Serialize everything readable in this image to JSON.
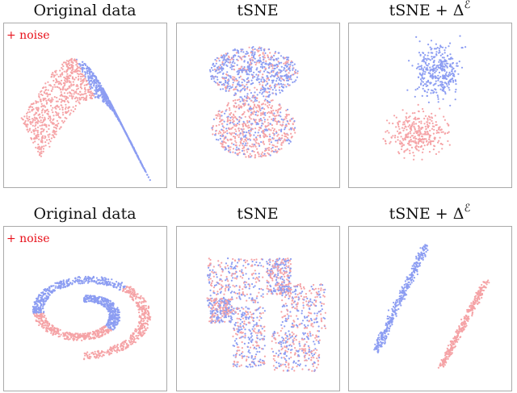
{
  "rows": [
    {
      "panels": [
        {
          "title": "Original data",
          "note": "+ noise"
        },
        {
          "title": "tSNE"
        },
        {
          "title": "tSNE + Δ",
          "title_sup": "ℰ"
        }
      ]
    },
    {
      "panels": [
        {
          "title": "Original data",
          "note": "+ noise"
        },
        {
          "title": "tSNE"
        },
        {
          "title": "tSNE + Δ",
          "title_sup": "ℰ"
        }
      ]
    }
  ]
}
